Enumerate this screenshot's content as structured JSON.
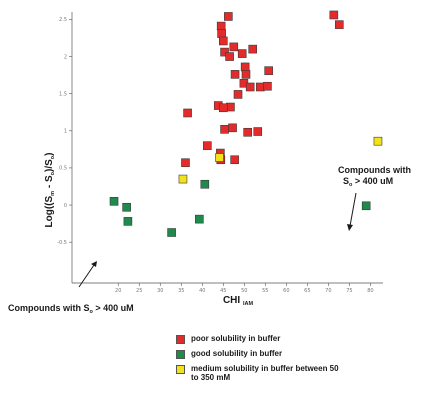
{
  "colors": {
    "poor": "#e32b2b",
    "good": "#1f8a4c",
    "medium": "#f2e21a",
    "axis": "#555555",
    "text": "#1a1a1a"
  },
  "chart_data": {
    "type": "scatter",
    "title": "",
    "xlabel": "CHI",
    "xlabel_sub": "IAM",
    "ylabel_parts": [
      "Log((S",
      "m",
      " - S",
      "o",
      ")/S",
      "o",
      ")"
    ],
    "xlim": [
      9,
      83
    ],
    "ylim": [
      -1.05,
      2.6
    ],
    "xticks": [
      20,
      25,
      30,
      35,
      40,
      45,
      50,
      55,
      60,
      65,
      70,
      75,
      80
    ],
    "yticks": [
      -0.5,
      0,
      0.5,
      1,
      1.5,
      2,
      2.5
    ],
    "ytick_labels": [
      "-0.5",
      "0",
      "0.5",
      "1",
      "1.5",
      "2",
      "2.5"
    ],
    "grid": false,
    "legend_position": "bottom",
    "series": [
      {
        "key": "poor",
        "name": "poor solubility in buffer",
        "points": [
          [
            46.2,
            2.54
          ],
          [
            71.3,
            2.56
          ],
          [
            72.6,
            2.43
          ],
          [
            44.5,
            2.41
          ],
          [
            44.6,
            2.31
          ],
          [
            45.0,
            2.21
          ],
          [
            47.5,
            2.13
          ],
          [
            45.3,
            2.06
          ],
          [
            46.5,
            2.0
          ],
          [
            49.5,
            2.04
          ],
          [
            52.0,
            2.1
          ],
          [
            50.2,
            1.86
          ],
          [
            50.4,
            1.76
          ],
          [
            55.8,
            1.81
          ],
          [
            47.8,
            1.76
          ],
          [
            49.9,
            1.64
          ],
          [
            51.4,
            1.59
          ],
          [
            53.8,
            1.59
          ],
          [
            55.5,
            1.6
          ],
          [
            48.5,
            1.49
          ],
          [
            43.8,
            1.34
          ],
          [
            46.7,
            1.32
          ],
          [
            45.0,
            1.31
          ],
          [
            36.5,
            1.24
          ],
          [
            45.3,
            1.02
          ],
          [
            47.2,
            1.04
          ],
          [
            50.8,
            0.98
          ],
          [
            53.2,
            0.99
          ],
          [
            41.2,
            0.8
          ],
          [
            44.3,
            0.7
          ],
          [
            44.4,
            0.61
          ],
          [
            47.7,
            0.61
          ],
          [
            36.0,
            0.57
          ]
        ]
      },
      {
        "key": "good",
        "name": "good solubility in buffer",
        "points": [
          [
            19.0,
            0.05
          ],
          [
            22.0,
            -0.03
          ],
          [
            22.3,
            -0.22
          ],
          [
            32.7,
            -0.37
          ],
          [
            39.3,
            -0.19
          ],
          [
            40.6,
            0.28
          ],
          [
            79.0,
            -0.01
          ]
        ]
      },
      {
        "key": "medium",
        "name": "medium solubility in buffer between 50 to 350 mM",
        "points": [
          [
            35.4,
            0.35
          ],
          [
            44.1,
            0.64
          ],
          [
            81.8,
            0.86
          ]
        ]
      }
    ],
    "annotations": [
      {
        "lines": [
          "Compounds with",
          "S",
          "o",
          " > 400 uM"
        ],
        "text_main": "Compounds with",
        "text_prefix": "S",
        "text_sub": "o",
        "text_suffix": " > 400 uM"
      },
      {
        "text_prefix": "Compounds with S",
        "text_sub": "o",
        "text_suffix": " > 400 uM"
      }
    ]
  }
}
